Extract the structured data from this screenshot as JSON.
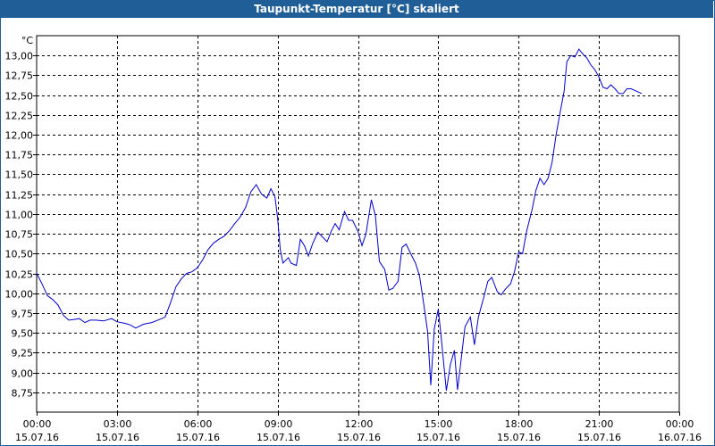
{
  "title": "Taupunkt-Temperatur [°C] skaliert",
  "colors": {
    "titlebar": "#1f5e96",
    "line": "#0000cc",
    "grid": "#000000"
  },
  "chart_data": {
    "type": "line",
    "title": "Taupunkt-Temperatur [°C] skaliert",
    "unit_label": "°C",
    "ylim": [
      8.5,
      13.25
    ],
    "y_ticks": [
      "8,75",
      "9,00",
      "9,25",
      "9,50",
      "9,75",
      "10,00",
      "10,25",
      "10,50",
      "10,75",
      "11,00",
      "11,25",
      "11,50",
      "11,75",
      "12,00",
      "12,25",
      "12,50",
      "12,75",
      "13,00"
    ],
    "y_tick_values": [
      8.75,
      9.0,
      9.25,
      9.5,
      9.75,
      10.0,
      10.25,
      10.5,
      10.75,
      11.0,
      11.25,
      11.5,
      11.75,
      12.0,
      12.25,
      12.5,
      12.75,
      13.0
    ],
    "x_range_hours": [
      0,
      24
    ],
    "x_ticks": [
      {
        "hour": 0,
        "time": "00:00",
        "date": "15.07.16"
      },
      {
        "hour": 3,
        "time": "03:00",
        "date": "15.07.16"
      },
      {
        "hour": 6,
        "time": "06:00",
        "date": "15.07.16"
      },
      {
        "hour": 9,
        "time": "09:00",
        "date": "15.07.16"
      },
      {
        "hour": 12,
        "time": "12:00",
        "date": "15.07.16"
      },
      {
        "hour": 15,
        "time": "15:00",
        "date": "15.07.16"
      },
      {
        "hour": 18,
        "time": "18:00",
        "date": "15.07.16"
      },
      {
        "hour": 21,
        "time": "21:00",
        "date": "15.07.16"
      },
      {
        "hour": 24,
        "time": "00:00",
        "date": "16.07.16"
      }
    ],
    "grid": true,
    "series": [
      {
        "points": [
          [
            0.0,
            10.25
          ],
          [
            0.2,
            10.12
          ],
          [
            0.4,
            9.97
          ],
          [
            0.6,
            9.92
          ],
          [
            0.8,
            9.85
          ],
          [
            1.0,
            9.72
          ],
          [
            1.2,
            9.66
          ],
          [
            1.4,
            9.67
          ],
          [
            1.6,
            9.68
          ],
          [
            1.8,
            9.63
          ],
          [
            2.0,
            9.66
          ],
          [
            2.2,
            9.66
          ],
          [
            2.5,
            9.65
          ],
          [
            2.8,
            9.68
          ],
          [
            3.0,
            9.64
          ],
          [
            3.3,
            9.62
          ],
          [
            3.5,
            9.6
          ],
          [
            3.7,
            9.56
          ],
          [
            4.0,
            9.61
          ],
          [
            4.3,
            9.63
          ],
          [
            4.6,
            9.67
          ],
          [
            4.8,
            9.7
          ],
          [
            5.0,
            9.88
          ],
          [
            5.2,
            10.08
          ],
          [
            5.4,
            10.18
          ],
          [
            5.6,
            10.25
          ],
          [
            5.8,
            10.27
          ],
          [
            6.0,
            10.32
          ],
          [
            6.2,
            10.42
          ],
          [
            6.4,
            10.55
          ],
          [
            6.6,
            10.63
          ],
          [
            6.8,
            10.68
          ],
          [
            7.0,
            10.72
          ],
          [
            7.2,
            10.79
          ],
          [
            7.4,
            10.88
          ],
          [
            7.6,
            10.96
          ],
          [
            7.8,
            11.08
          ],
          [
            8.0,
            11.28
          ],
          [
            8.2,
            11.37
          ],
          [
            8.4,
            11.25
          ],
          [
            8.6,
            11.2
          ],
          [
            8.75,
            11.32
          ],
          [
            8.9,
            11.22
          ],
          [
            9.0,
            10.95
          ],
          [
            9.1,
            10.55
          ],
          [
            9.2,
            10.38
          ],
          [
            9.4,
            10.45
          ],
          [
            9.5,
            10.38
          ],
          [
            9.7,
            10.35
          ],
          [
            9.85,
            10.68
          ],
          [
            10.0,
            10.6
          ],
          [
            10.15,
            10.47
          ],
          [
            10.3,
            10.62
          ],
          [
            10.5,
            10.77
          ],
          [
            10.7,
            10.7
          ],
          [
            10.85,
            10.65
          ],
          [
            11.0,
            10.78
          ],
          [
            11.15,
            10.88
          ],
          [
            11.3,
            10.8
          ],
          [
            11.5,
            11.03
          ],
          [
            11.65,
            10.92
          ],
          [
            11.8,
            10.92
          ],
          [
            12.0,
            10.78
          ],
          [
            12.15,
            10.6
          ],
          [
            12.3,
            10.75
          ],
          [
            12.5,
            11.18
          ],
          [
            12.65,
            10.98
          ],
          [
            12.8,
            10.4
          ],
          [
            13.0,
            10.3
          ],
          [
            13.15,
            10.04
          ],
          [
            13.3,
            10.06
          ],
          [
            13.5,
            10.15
          ],
          [
            13.65,
            10.58
          ],
          [
            13.8,
            10.62
          ],
          [
            14.0,
            10.48
          ],
          [
            14.15,
            10.38
          ],
          [
            14.3,
            10.22
          ],
          [
            14.45,
            9.88
          ],
          [
            14.6,
            9.52
          ],
          [
            14.72,
            8.84
          ],
          [
            14.85,
            9.55
          ],
          [
            15.0,
            9.8
          ],
          [
            15.15,
            9.3
          ],
          [
            15.3,
            8.77
          ],
          [
            15.45,
            9.1
          ],
          [
            15.6,
            9.28
          ],
          [
            15.72,
            8.78
          ],
          [
            15.85,
            9.15
          ],
          [
            16.0,
            9.58
          ],
          [
            16.2,
            9.7
          ],
          [
            16.35,
            9.35
          ],
          [
            16.5,
            9.7
          ],
          [
            16.7,
            9.95
          ],
          [
            16.85,
            10.15
          ],
          [
            17.0,
            10.2
          ],
          [
            17.2,
            10.02
          ],
          [
            17.35,
            9.98
          ],
          [
            17.5,
            10.05
          ],
          [
            17.7,
            10.12
          ],
          [
            17.85,
            10.28
          ],
          [
            18.0,
            10.52
          ],
          [
            18.15,
            10.5
          ],
          [
            18.3,
            10.78
          ],
          [
            18.5,
            11.05
          ],
          [
            18.65,
            11.3
          ],
          [
            18.8,
            11.45
          ],
          [
            18.95,
            11.37
          ],
          [
            19.1,
            11.45
          ],
          [
            19.25,
            11.65
          ],
          [
            19.4,
            12.0
          ],
          [
            19.55,
            12.28
          ],
          [
            19.7,
            12.55
          ],
          [
            19.8,
            12.92
          ],
          [
            19.95,
            13.0
          ],
          [
            20.1,
            12.98
          ],
          [
            20.25,
            13.08
          ],
          [
            20.4,
            13.02
          ],
          [
            20.55,
            12.97
          ],
          [
            20.7,
            12.88
          ],
          [
            20.85,
            12.82
          ],
          [
            21.0,
            12.73
          ],
          [
            21.15,
            12.6
          ],
          [
            21.3,
            12.58
          ],
          [
            21.45,
            12.63
          ],
          [
            21.6,
            12.58
          ],
          [
            21.75,
            12.52
          ],
          [
            21.9,
            12.52
          ],
          [
            22.05,
            12.58
          ],
          [
            22.2,
            12.58
          ],
          [
            22.4,
            12.55
          ],
          [
            22.6,
            12.52
          ]
        ]
      }
    ]
  }
}
